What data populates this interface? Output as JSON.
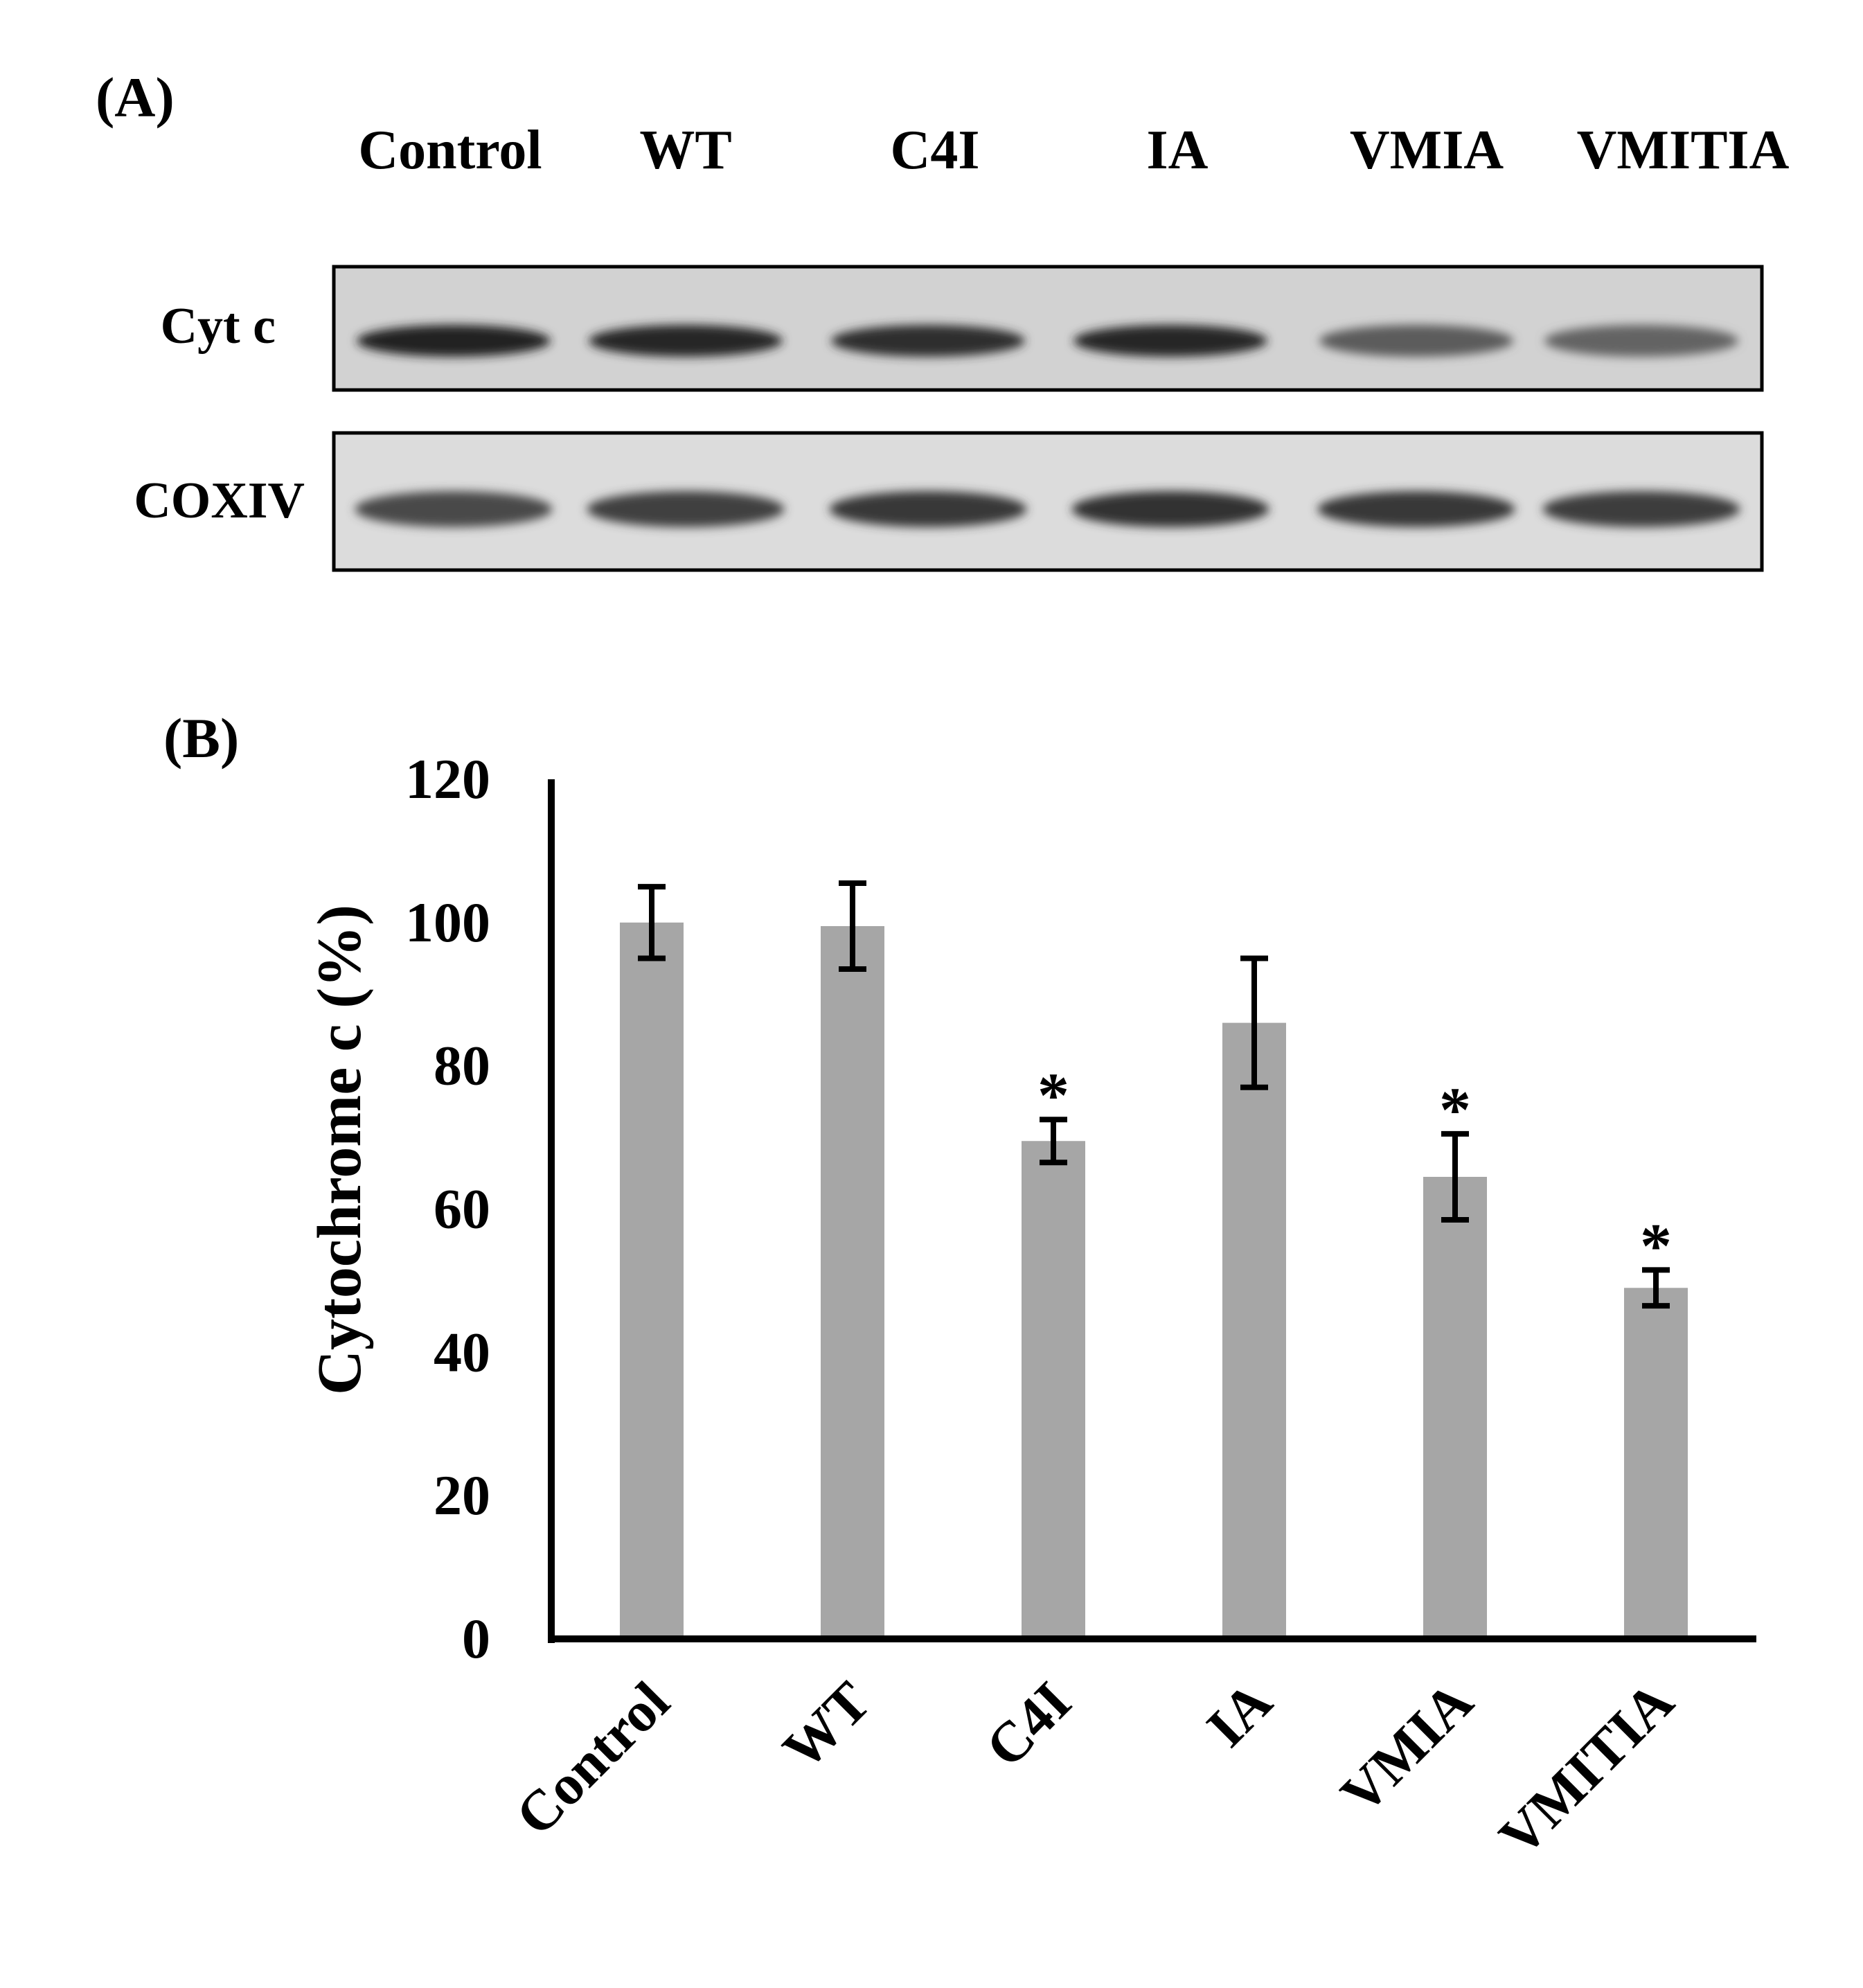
{
  "panel_a": {
    "label": "(A)",
    "lanes": [
      "Control",
      "WT",
      "C4I",
      "IA",
      "VMIA",
      "VMITIA"
    ],
    "blots": [
      {
        "label": "Cyt c",
        "band_intensity": [
          0.95,
          0.93,
          0.88,
          0.92,
          0.62,
          0.58
        ]
      },
      {
        "label": "COXIV",
        "band_intensity": [
          0.72,
          0.78,
          0.82,
          0.86,
          0.82,
          0.8
        ]
      }
    ]
  },
  "panel_b": {
    "label": "(B)"
  },
  "colors": {
    "bar": "#a6a6a6",
    "axis": "#000000",
    "error_bar": "#000000"
  },
  "chart_data": {
    "type": "bar",
    "categories": [
      "Control",
      "WT",
      "C4I",
      "IA",
      "VMIA",
      "VMITIA"
    ],
    "values": [
      100,
      99.5,
      69.5,
      86,
      64.5,
      49
    ],
    "error_plus": [
      5,
      6,
      3,
      9,
      6,
      2.5
    ],
    "error_minus": [
      5,
      6,
      3,
      9,
      6,
      2.5
    ],
    "significance": [
      "",
      "",
      "*",
      "",
      "*",
      "*"
    ],
    "title": "",
    "xlabel": "",
    "ylabel": "Cytochrome c (%)",
    "ylim": [
      0,
      120
    ],
    "yticks": [
      0,
      20,
      40,
      60,
      80,
      100,
      120
    ],
    "grid": false,
    "legend": "none"
  }
}
